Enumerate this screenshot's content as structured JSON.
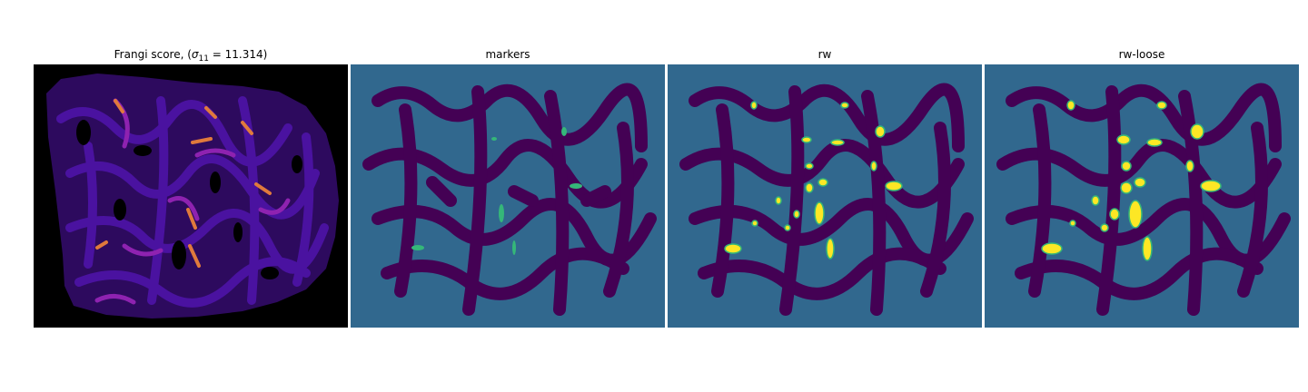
{
  "panels": [
    {
      "title_prefix": "Frangi score, (",
      "title_sigma": "σ",
      "title_sub": "11",
      "title_suffix": " = 11.314)",
      "colormap": "plasma-like"
    },
    {
      "title": "markers",
      "colormap": "viridis-like"
    },
    {
      "title": "rw",
      "colormap": "viridis-like"
    },
    {
      "title": "rw-loose",
      "colormap": "viridis-like"
    }
  ],
  "colors": {
    "frangi_background": "#000000",
    "frangi_low": "#3a0a7a",
    "frangi_mid": "#b0339a",
    "frangi_high": "#f2a33a",
    "seg_background": "#31688e",
    "seg_tissue": "#440154",
    "seg_marker": "#35b779",
    "seg_vessel": "#fde725"
  }
}
